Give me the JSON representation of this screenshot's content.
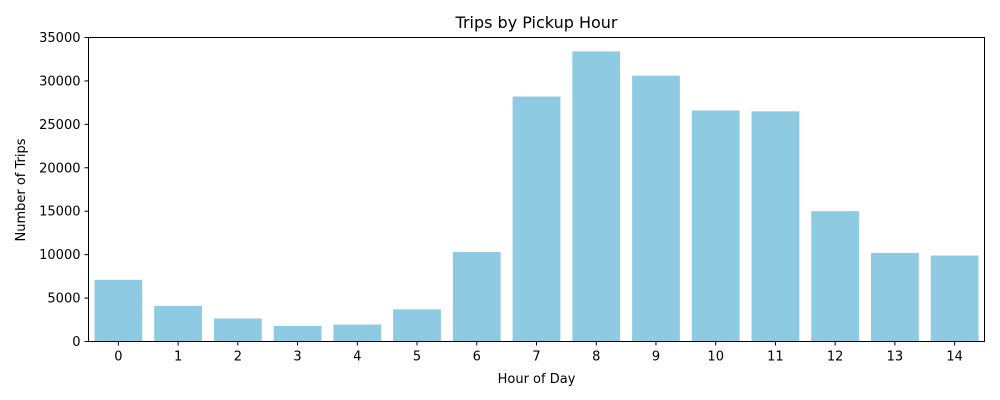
{
  "chart_data": {
    "type": "bar",
    "title": "Trips by Pickup Hour",
    "xlabel": "Hour of Day",
    "ylabel": "Number of Trips",
    "categories": [
      "0",
      "1",
      "2",
      "3",
      "4",
      "5",
      "6",
      "7",
      "8",
      "9",
      "10",
      "11",
      "12",
      "13",
      "14"
    ],
    "values": [
      7100,
      4100,
      2650,
      1800,
      1950,
      3700,
      10300,
      28200,
      33400,
      30600,
      26600,
      26500,
      15000,
      10200,
      9900
    ],
    "ylim": [
      0,
      35000
    ],
    "yticks": [
      0,
      5000,
      10000,
      15000,
      20000,
      25000,
      30000,
      35000
    ],
    "bar_color": "#8ecae2",
    "grid": false,
    "legend": "none"
  }
}
